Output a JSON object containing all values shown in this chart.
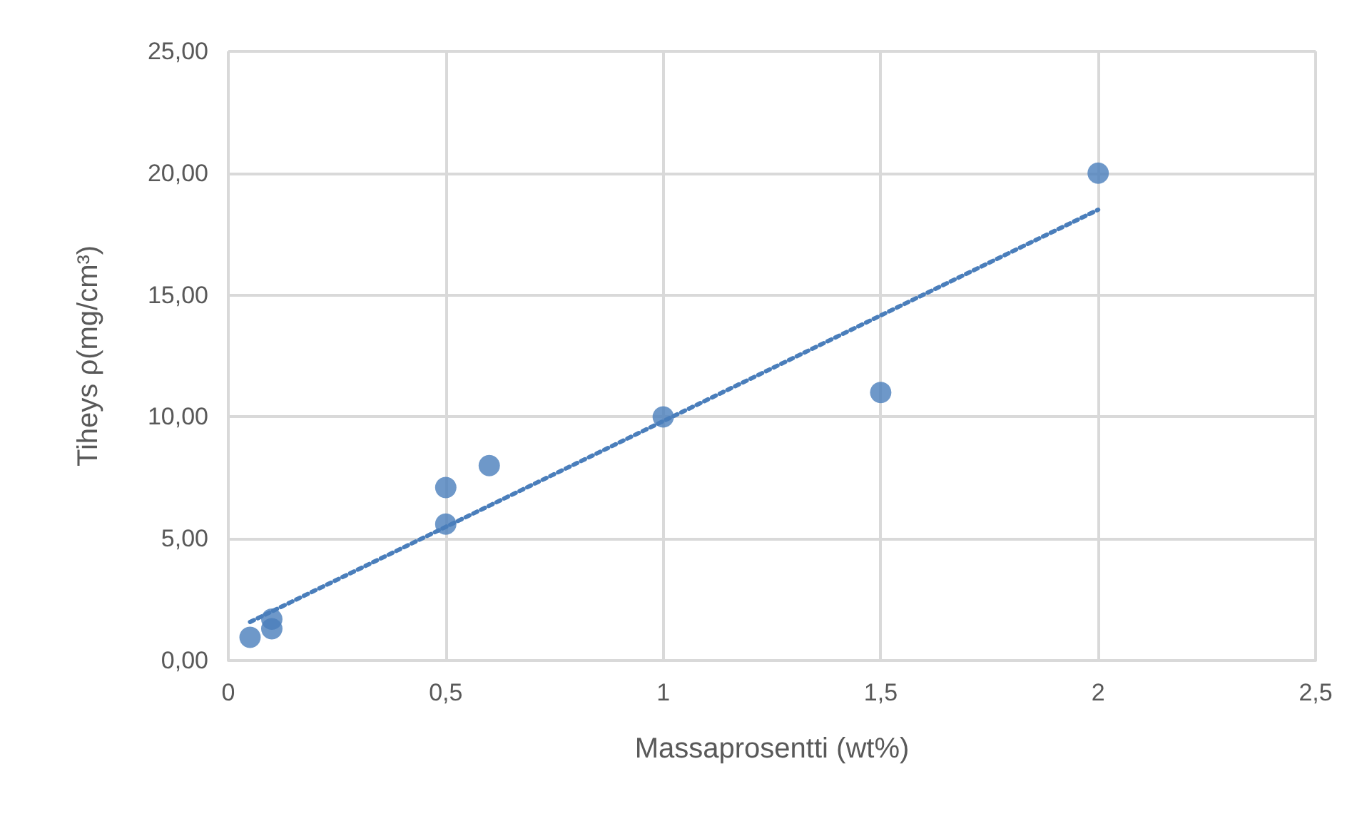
{
  "chart_data": {
    "type": "scatter",
    "xlabel": "Massaprosentti (wt%)",
    "ylabel": "Tiheys ρ(mg/cm³)",
    "marker": "circle",
    "grid": true,
    "xlim": [
      0,
      2.5
    ],
    "xticks": [
      0,
      {
        "value": 0.5,
        "label": "0,5"
      },
      1,
      {
        "value": 1.5,
        "label": "1,5"
      },
      2,
      {
        "value": 2.5,
        "label": "2,5"
      }
    ],
    "ylim": [
      0,
      25
    ],
    "yticks": [
      {
        "value": 0,
        "label": "0,00"
      },
      {
        "value": 5,
        "label": "5,00"
      },
      {
        "value": 10,
        "label": "10,00"
      },
      {
        "value": 15,
        "label": "15,00"
      },
      {
        "value": 20,
        "label": "20,00"
      },
      {
        "value": 25,
        "label": "25,00"
      }
    ],
    "series": [
      {
        "color": "#4a7ebb",
        "x": [
          0.05,
          0.1,
          0.1,
          0.5,
          0.5,
          0.6,
          1,
          1.5,
          2
        ],
        "values": [
          0.95,
          1.7,
          1.3,
          7.1,
          5.6,
          8.0,
          10,
          11,
          20
        ]
      },
      {
        "type": "line",
        "color": "#4a7ebb",
        "line_style": "dotted",
        "marker": "none",
        "x": [
          0.05,
          2
        ],
        "values": [
          1.58,
          18.5
        ]
      }
    ]
  }
}
